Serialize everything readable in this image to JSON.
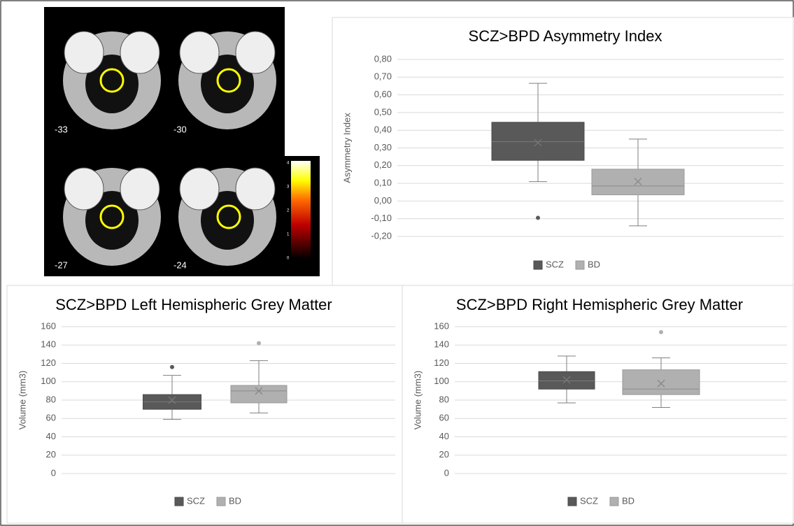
{
  "figure_panel": {
    "slice_labels": [
      "-33",
      "-30",
      "-27",
      "-24"
    ],
    "colorbar_ticks": [
      "4",
      "3",
      "2",
      "1",
      "0"
    ]
  },
  "chart_data": [
    {
      "type": "box",
      "title": "SCZ>BPD Asymmetry Index",
      "y_label": "Asymmetry Index",
      "ylim": [
        -0.2,
        0.8
      ],
      "yticks": [
        {
          "value": -0.2,
          "label": "-0,20"
        },
        {
          "value": -0.1,
          "label": "-0,10"
        },
        {
          "value": 0,
          "label": "0,00"
        },
        {
          "value": 0.1,
          "label": "0,10"
        },
        {
          "value": 0.2,
          "label": "0,20"
        },
        {
          "value": 0.3,
          "label": "0,30"
        },
        {
          "value": 0.4,
          "label": "0,40"
        },
        {
          "value": 0.5,
          "label": "0,50"
        },
        {
          "value": 0.6,
          "label": "0,60"
        },
        {
          "value": 0.7,
          "label": "0,70"
        },
        {
          "value": 0.8,
          "label": "0,80"
        }
      ],
      "grid": true,
      "legend": "bottom",
      "series": [
        {
          "name": "SCZ",
          "color": "#595959",
          "min": 0.11,
          "q1": 0.23,
          "median": 0.335,
          "q3": 0.445,
          "max": 0.665,
          "mean": 0.33,
          "outliers": [
            -0.095
          ]
        },
        {
          "name": "BD",
          "color": "#b0b0b0",
          "min": -0.14,
          "q1": 0.035,
          "median": 0.085,
          "q3": 0.18,
          "max": 0.35,
          "mean": 0.11,
          "outliers": []
        }
      ]
    },
    {
      "type": "box",
      "title": "SCZ>BPD Left Hemispheric Grey Matter",
      "y_label": "Volume (mm3)",
      "ylim": [
        0,
        160
      ],
      "yticks": [
        0,
        20,
        40,
        60,
        80,
        100,
        120,
        140,
        160
      ],
      "grid": true,
      "legend": "bottom",
      "series": [
        {
          "name": "SCZ",
          "color": "#595959",
          "min": 59,
          "q1": 70,
          "median": 78,
          "q3": 86,
          "max": 107,
          "mean": 80,
          "outliers": [
            116
          ]
        },
        {
          "name": "BD",
          "color": "#b0b0b0",
          "min": 66,
          "q1": 77,
          "median": 90,
          "q3": 96,
          "max": 123,
          "mean": 90,
          "outliers": [
            142
          ]
        }
      ]
    },
    {
      "type": "box",
      "title": "SCZ>BPD Right Hemispheric Grey Matter",
      "y_label": "Volume (mm3)",
      "ylim": [
        0,
        160
      ],
      "yticks": [
        0,
        20,
        40,
        60,
        80,
        100,
        120,
        140,
        160
      ],
      "grid": true,
      "legend": "bottom",
      "series": [
        {
          "name": "SCZ",
          "color": "#595959",
          "min": 77,
          "q1": 92,
          "median": 101,
          "q3": 111,
          "max": 128,
          "mean": 102,
          "outliers": []
        },
        {
          "name": "BD",
          "color": "#b0b0b0",
          "min": 72,
          "q1": 86,
          "median": 92,
          "q3": 113,
          "max": 126,
          "mean": 98,
          "outliers": [
            154
          ]
        }
      ]
    }
  ]
}
